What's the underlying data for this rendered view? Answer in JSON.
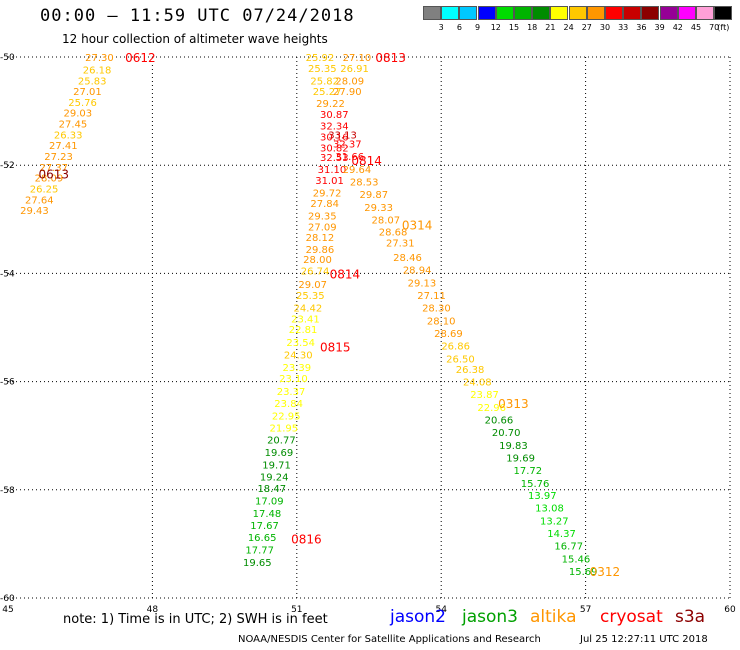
{
  "header": {
    "title": "00:00 — 11:59 UTC 07/24/2018",
    "subtitle": "12 hour collection of altimeter wave heights"
  },
  "colorbar": {
    "colors": [
      "#808080",
      "#00ffff",
      "#00c8ff",
      "#0000ff",
      "#00dc00",
      "#00b400",
      "#008c00",
      "#ffff00",
      "#ffc800",
      "#ff9600",
      "#ff0000",
      "#c80000",
      "#8c0000",
      "#960096",
      "#ff00ff",
      "#ffa0d8",
      "#000000"
    ],
    "labels": [
      "3",
      "6",
      "9",
      "12",
      "15",
      "18",
      "21",
      "24",
      "27",
      "30",
      "33",
      "36",
      "39",
      "42",
      "45",
      "70",
      "(ft)"
    ]
  },
  "footer": {
    "note": "note:  1) Time is in UTC;  2) SWH is in feet",
    "missions": [
      {
        "name": "jason2",
        "color": "#0000ff"
      },
      {
        "name": "jason3",
        "color": "#00a000"
      },
      {
        "name": "altika",
        "color": "#ff9600"
      },
      {
        "name": "cryosat",
        "color": "#ff0000"
      },
      {
        "name": "s3a",
        "color": "#8c0000"
      }
    ],
    "credit": "NOAA/NESDIS Center for Satellite Applications and Research",
    "stamp": "Jul 25 12:27:11 UTC 2018"
  },
  "chart_data": {
    "type": "scatter",
    "title": "00:00 — 11:59 UTC 07/24/2018",
    "subtitle": "12 hour collection of altimeter wave heights",
    "xlim": [
      45,
      60
    ],
    "ylim": [
      -60,
      -50
    ],
    "x_ticks": [
      45,
      48,
      51,
      54,
      57,
      60
    ],
    "y_ticks": [
      -50,
      -52,
      -54,
      -56,
      -58,
      -60
    ],
    "grid": true,
    "units": "ft",
    "points": [
      {
        "x": 46.9,
        "y": -50.0,
        "v": "27.30"
      },
      {
        "x": 46.85,
        "y": -50.23,
        "v": "26.18"
      },
      {
        "x": 46.75,
        "y": -50.43,
        "v": "25.83"
      },
      {
        "x": 46.65,
        "y": -50.63,
        "v": "27.01"
      },
      {
        "x": 46.55,
        "y": -50.83,
        "v": "25.76"
      },
      {
        "x": 46.45,
        "y": -51.03,
        "v": "29.03"
      },
      {
        "x": 46.35,
        "y": -51.23,
        "v": "27.45"
      },
      {
        "x": 46.25,
        "y": -51.43,
        "v": "26.33"
      },
      {
        "x": 46.15,
        "y": -51.63,
        "v": "27.41"
      },
      {
        "x": 46.05,
        "y": -51.83,
        "v": "27.23"
      },
      {
        "x": 45.95,
        "y": -52.03,
        "v": "27.37"
      },
      {
        "x": 45.85,
        "y": -52.23,
        "v": "28.09"
      },
      {
        "x": 45.75,
        "y": -52.43,
        "v": "26.25"
      },
      {
        "x": 45.65,
        "y": -52.63,
        "v": "27.64"
      },
      {
        "x": 45.55,
        "y": -52.83,
        "v": "29.43"
      },
      {
        "x": 51.48,
        "y": -50.0,
        "v": "25.92"
      },
      {
        "x": 51.53,
        "y": -50.2,
        "v": "25.35"
      },
      {
        "x": 51.58,
        "y": -50.43,
        "v": "25.82"
      },
      {
        "x": 51.63,
        "y": -50.63,
        "v": "25.27"
      },
      {
        "x": 51.7,
        "y": -50.85,
        "v": "29.22"
      },
      {
        "x": 51.78,
        "y": -51.05,
        "v": "30.87"
      },
      {
        "x": 51.78,
        "y": -51.27,
        "v": "32.34"
      },
      {
        "x": 51.78,
        "y": -51.47,
        "v": "30.16"
      },
      {
        "x": 51.78,
        "y": -51.67,
        "v": "30.82"
      },
      {
        "x": 51.78,
        "y": -51.85,
        "v": "32.53"
      },
      {
        "x": 51.73,
        "y": -52.07,
        "v": "31.10"
      },
      {
        "x": 51.68,
        "y": -52.27,
        "v": "31.01"
      },
      {
        "x": 51.63,
        "y": -52.5,
        "v": "29.72"
      },
      {
        "x": 51.58,
        "y": -52.7,
        "v": "27.84"
      },
      {
        "x": 51.53,
        "y": -52.93,
        "v": "29.35"
      },
      {
        "x": 51.53,
        "y": -53.13,
        "v": "27.09"
      },
      {
        "x": 51.48,
        "y": -53.33,
        "v": "28.12"
      },
      {
        "x": 51.48,
        "y": -53.55,
        "v": "29.86"
      },
      {
        "x": 51.43,
        "y": -53.73,
        "v": "28.00"
      },
      {
        "x": 51.38,
        "y": -53.95,
        "v": "26.74"
      },
      {
        "x": 51.33,
        "y": -54.2,
        "v": "29.07"
      },
      {
        "x": 51.28,
        "y": -54.4,
        "v": "25.35"
      },
      {
        "x": 51.23,
        "y": -54.63,
        "v": "24.42"
      },
      {
        "x": 51.18,
        "y": -54.83,
        "v": "23.41"
      },
      {
        "x": 51.13,
        "y": -55.03,
        "v": "22.81"
      },
      {
        "x": 51.08,
        "y": -55.27,
        "v": "23.54"
      },
      {
        "x": 51.03,
        "y": -55.5,
        "v": "24.30"
      },
      {
        "x": 51.0,
        "y": -55.73,
        "v": "23.39"
      },
      {
        "x": 50.93,
        "y": -55.93,
        "v": "23.10"
      },
      {
        "x": 50.88,
        "y": -56.17,
        "v": "23.37"
      },
      {
        "x": 50.83,
        "y": -56.4,
        "v": "23.84"
      },
      {
        "x": 50.78,
        "y": -56.63,
        "v": "22.95"
      },
      {
        "x": 50.73,
        "y": -56.85,
        "v": "21.95"
      },
      {
        "x": 50.68,
        "y": -57.07,
        "v": "20.77"
      },
      {
        "x": 50.63,
        "y": -57.3,
        "v": "19.69"
      },
      {
        "x": 50.58,
        "y": -57.53,
        "v": "19.71"
      },
      {
        "x": 50.53,
        "y": -57.75,
        "v": "19.24"
      },
      {
        "x": 50.48,
        "y": -57.97,
        "v": "18.47"
      },
      {
        "x": 50.43,
        "y": -58.2,
        "v": "17.09"
      },
      {
        "x": 50.38,
        "y": -58.43,
        "v": "17.48"
      },
      {
        "x": 50.33,
        "y": -58.65,
        "v": "17.67"
      },
      {
        "x": 50.28,
        "y": -58.87,
        "v": "16.65"
      },
      {
        "x": 50.23,
        "y": -59.1,
        "v": "17.77"
      },
      {
        "x": 50.18,
        "y": -59.33,
        "v": "19.65"
      },
      {
        "x": 52.25,
        "y": -50.0,
        "v": "27.10"
      },
      {
        "x": 52.2,
        "y": -50.2,
        "v": "26.91"
      },
      {
        "x": 52.1,
        "y": -50.43,
        "v": "28.09"
      },
      {
        "x": 52.05,
        "y": -50.63,
        "v": "27.90"
      },
      {
        "x": 51.95,
        "y": -51.43,
        "v": "33.13"
      },
      {
        "x": 52.05,
        "y": -51.6,
        "v": "32.37"
      },
      {
        "x": 52.1,
        "y": -51.83,
        "v": "31.66"
      },
      {
        "x": 52.25,
        "y": -52.07,
        "v": "29.64"
      },
      {
        "x": 52.4,
        "y": -52.3,
        "v": "28.53"
      },
      {
        "x": 52.6,
        "y": -52.53,
        "v": "29.87"
      },
      {
        "x": 52.7,
        "y": -52.77,
        "v": "29.33"
      },
      {
        "x": 52.85,
        "y": -53.0,
        "v": "28.07"
      },
      {
        "x": 53.0,
        "y": -53.23,
        "v": "28.68"
      },
      {
        "x": 53.15,
        "y": -53.43,
        "v": "27.31"
      },
      {
        "x": 53.3,
        "y": -53.7,
        "v": "28.46"
      },
      {
        "x": 53.5,
        "y": -53.93,
        "v": "28.94"
      },
      {
        "x": 53.6,
        "y": -54.17,
        "v": "29.13"
      },
      {
        "x": 53.8,
        "y": -54.4,
        "v": "27.11"
      },
      {
        "x": 53.9,
        "y": -54.63,
        "v": "28.30"
      },
      {
        "x": 54.0,
        "y": -54.87,
        "v": "28.10"
      },
      {
        "x": 54.15,
        "y": -55.1,
        "v": "28.69"
      },
      {
        "x": 54.3,
        "y": -55.33,
        "v": "26.86"
      },
      {
        "x": 54.4,
        "y": -55.57,
        "v": "26.50"
      },
      {
        "x": 54.6,
        "y": -55.77,
        "v": "26.38"
      },
      {
        "x": 54.75,
        "y": -56.0,
        "v": "24.08"
      },
      {
        "x": 54.9,
        "y": -56.23,
        "v": "23.87"
      },
      {
        "x": 55.05,
        "y": -56.47,
        "v": "22.96"
      },
      {
        "x": 55.2,
        "y": -56.7,
        "v": "20.66"
      },
      {
        "x": 55.35,
        "y": -56.93,
        "v": "20.70"
      },
      {
        "x": 55.5,
        "y": -57.17,
        "v": "19.83"
      },
      {
        "x": 55.65,
        "y": -57.4,
        "v": "19.69"
      },
      {
        "x": 55.8,
        "y": -57.63,
        "v": "17.72"
      },
      {
        "x": 55.95,
        "y": -57.87,
        "v": "15.76"
      },
      {
        "x": 56.1,
        "y": -58.1,
        "v": "13.97"
      },
      {
        "x": 56.25,
        "y": -58.33,
        "v": "13.08"
      },
      {
        "x": 56.35,
        "y": -58.57,
        "v": "13.27"
      },
      {
        "x": 56.5,
        "y": -58.8,
        "v": "14.37"
      },
      {
        "x": 56.65,
        "y": -59.03,
        "v": "16.77"
      },
      {
        "x": 56.8,
        "y": -59.27,
        "v": "15.46"
      },
      {
        "x": 56.95,
        "y": -59.5,
        "v": "15.69"
      }
    ],
    "time_labels": [
      {
        "x": 47.75,
        "y": -50.0,
        "text": "0612",
        "mission": "cryosat"
      },
      {
        "x": 45.95,
        "y": -52.15,
        "text": "0613",
        "mission": "s3a"
      },
      {
        "x": 52.95,
        "y": -50.0,
        "text": "0813",
        "mission": "cryosat"
      },
      {
        "x": 52.45,
        "y": -51.9,
        "text": "0814",
        "mission": "cryosat"
      },
      {
        "x": 53.5,
        "y": -53.1,
        "text": "0314",
        "mission": "altika"
      },
      {
        "x": 52.0,
        "y": -54.0,
        "text": "0814",
        "mission": "cryosat"
      },
      {
        "x": 51.8,
        "y": -55.35,
        "text": "0815",
        "mission": "cryosat"
      },
      {
        "x": 55.5,
        "y": -56.4,
        "text": "0313",
        "mission": "altika"
      },
      {
        "x": 51.2,
        "y": -58.9,
        "text": "0816",
        "mission": "cryosat"
      },
      {
        "x": 57.4,
        "y": -59.5,
        "text": "0312",
        "mission": "altika"
      }
    ]
  }
}
